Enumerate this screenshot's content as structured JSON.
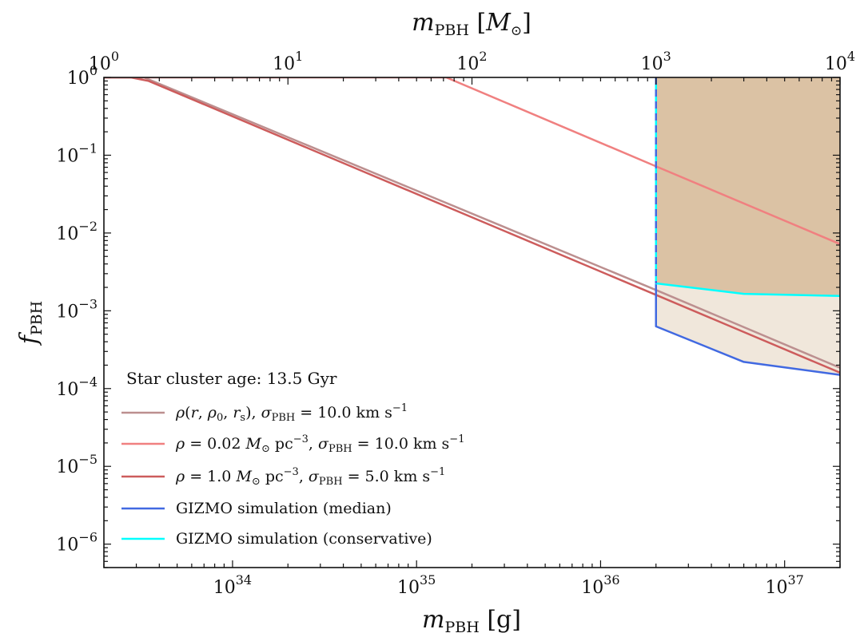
{
  "chart_data": {
    "type": "line",
    "xlabel": "m_PBH [g]",
    "x2label": "m_PBH [M_⊙]",
    "ylabel": "f_PBH",
    "x_scale": "log",
    "y_scale": "log",
    "xlim": [
      2e+33,
      2e+37
    ],
    "x2lim": [
      1,
      10000
    ],
    "ylim": [
      5e-07,
      1
    ],
    "x_ticks": [
      {
        "value": 1e+34,
        "label": "10^34"
      },
      {
        "value": 1e+35,
        "label": "10^35"
      },
      {
        "value": 1e+36,
        "label": "10^36"
      },
      {
        "value": 1e+37,
        "label": "10^37"
      }
    ],
    "x2_ticks": [
      {
        "value": 1,
        "label": "10^0"
      },
      {
        "value": 10,
        "label": "10^1"
      },
      {
        "value": 100,
        "label": "10^2"
      },
      {
        "value": 1000,
        "label": "10^3"
      },
      {
        "value": 10000,
        "label": "10^4"
      }
    ],
    "y_ticks": [
      {
        "value": 1,
        "label": "10^0"
      },
      {
        "value": 0.1,
        "label": "10^-1"
      },
      {
        "value": 0.01,
        "label": "10^-2"
      },
      {
        "value": 0.001,
        "label": "10^-3"
      },
      {
        "value": 0.0001,
        "label": "10^-4"
      },
      {
        "value": 1e-05,
        "label": "10^-5"
      },
      {
        "value": 1e-06,
        "label": "10^-6"
      }
    ],
    "legend_title": "Star cluster age: 13.5 Gyr",
    "legend_position": "lower-left",
    "series": [
      {
        "name": "ρ(r, ρ0, rs), σPBH = 10.0 km s−1",
        "color": "#bc8f8f",
        "x": [
          2e+33,
          3.3e+33,
          2e+36,
          2e+37
        ],
        "y": [
          1,
          1,
          0.00185,
          0.000185
        ]
      },
      {
        "name": "ρ = 0.02 M⊙ pc−3, σPBH = 10.0 km s−1",
        "color": "#f08080",
        "x": [
          2e+33,
          1.45e+35,
          2e+36,
          2e+37
        ],
        "y": [
          1,
          1,
          0.072,
          0.0072
        ]
      },
      {
        "name": "ρ = 1.0 M⊙ pc−3, σPBH = 5.0 km s−1",
        "color": "#cd5c5c",
        "x": [
          2e+33,
          2.8e+33,
          3.5e+33,
          2e+36,
          2e+37
        ],
        "y": [
          1,
          1,
          0.9,
          0.0016,
          0.00016
        ]
      },
      {
        "name": "GIZMO simulation (median)",
        "color": "#4169e1",
        "x": [
          2e+36,
          2e+36,
          6e+36,
          2e+37
        ],
        "y": [
          1,
          0.00063,
          0.00022,
          0.00015
        ]
      },
      {
        "name": "GIZMO simulation (conservative)",
        "color": "#00ffff",
        "x": [
          2e+36,
          2e+36,
          6e+36,
          2e+37
        ],
        "y": [
          1,
          0.00225,
          0.00165,
          0.00155
        ]
      }
    ],
    "shaded_regions": [
      {
        "name": "median-excluded",
        "color": "#f0e7db",
        "bounded_by": "GIZMO simulation (median)"
      },
      {
        "name": "conservative-excluded",
        "color": "#dbc2a4",
        "bounded_by": "GIZMO simulation (conservative)"
      }
    ]
  }
}
